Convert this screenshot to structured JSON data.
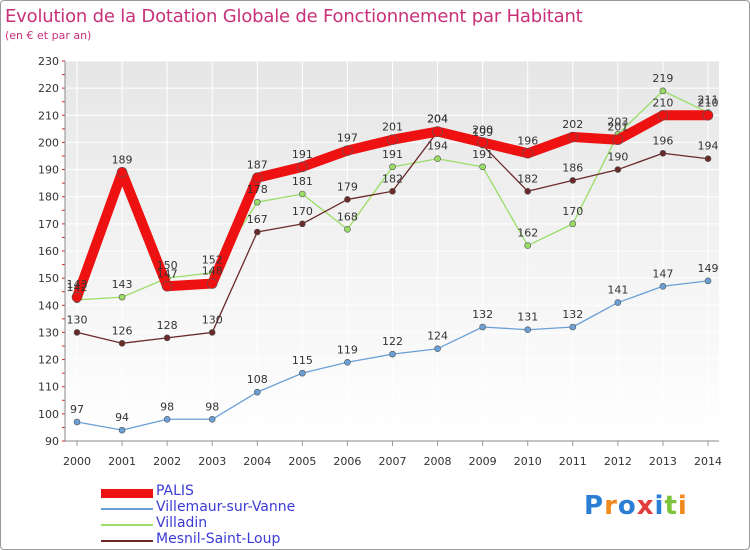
{
  "chart_data": {
    "type": "line",
    "title": "Evolution de la Dotation Globale de Fonctionnement par Habitant",
    "subtitle": "(en € et par an)",
    "xlabel": "",
    "ylabel": "",
    "categories": [
      "2000",
      "2001",
      "2002",
      "2003",
      "2004",
      "2005",
      "2006",
      "2007",
      "2008",
      "2009",
      "2010",
      "2011",
      "2012",
      "2013",
      "2014"
    ],
    "ylim": [
      90,
      230
    ],
    "yticks": [
      90,
      100,
      110,
      120,
      130,
      140,
      150,
      160,
      170,
      180,
      190,
      200,
      210,
      220,
      230
    ],
    "grid": true,
    "legend_position": "bottom-left",
    "series": [
      {
        "name": "PALIS",
        "color": "#ee1111",
        "values": [
          143,
          189,
          147,
          148,
          187,
          191,
          197,
          201,
          204,
          200,
          196,
          202,
          201,
          210,
          210
        ]
      },
      {
        "name": "Villemaur-sur-Vanne",
        "color": "#6aa0d6",
        "values": [
          97,
          94,
          98,
          98,
          108,
          115,
          119,
          122,
          124,
          132,
          131,
          132,
          141,
          147,
          149
        ]
      },
      {
        "name": "Villadin",
        "color": "#99dd66",
        "values": [
          142,
          143,
          150,
          152,
          178,
          181,
          168,
          191,
          194,
          191,
          162,
          170,
          203,
          219,
          211
        ]
      },
      {
        "name": "Mesnil-Saint-Loup",
        "color": "#6b2a2a",
        "values": [
          130,
          126,
          128,
          130,
          167,
          170,
          179,
          182,
          204,
          199,
          182,
          186,
          190,
          196,
          194
        ]
      }
    ]
  },
  "brand": {
    "text": "Proxiti"
  }
}
